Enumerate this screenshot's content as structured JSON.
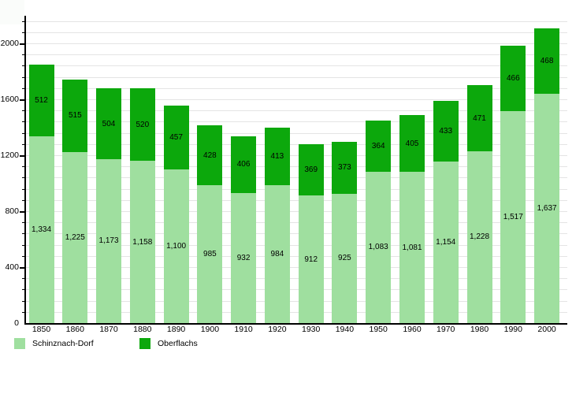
{
  "chart_data": {
    "type": "bar",
    "stacked": true,
    "title": "",
    "xlabel": "",
    "ylabel": "",
    "categories": [
      "1850",
      "1860",
      "1870",
      "1880",
      "1890",
      "1900",
      "1910",
      "1920",
      "1930",
      "1940",
      "1950",
      "1960",
      "1970",
      "1980",
      "1990",
      "2000"
    ],
    "series": [
      {
        "name": "Schinznach-Dorf",
        "color": "#9FDF9F",
        "values": [
          1334,
          1225,
          1173,
          1158,
          1100,
          985,
          932,
          984,
          912,
          925,
          1083,
          1081,
          1154,
          1228,
          1517,
          1637
        ]
      },
      {
        "name": "Oberflachs",
        "color": "#0CA80C",
        "values": [
          512,
          515,
          504,
          520,
          457,
          428,
          406,
          413,
          369,
          373,
          364,
          405,
          433,
          471,
          466,
          468
        ]
      }
    ],
    "totals": [
      1846,
      1740,
      1677,
      1678,
      1557,
      1413,
      1338,
      1397,
      1281,
      1298,
      1447,
      1486,
      1587,
      1699,
      1983,
      2105
    ],
    "ylim": [
      0,
      2265
    ],
    "y_major_ticks": [
      0,
      400,
      800,
      1200,
      1600,
      2000
    ],
    "y_minor_step": 80,
    "grid": true,
    "gridline_color": "#e4e4e4",
    "label_color": "#000000",
    "legend_position": "bottom-left",
    "number_format": "thousands-comma"
  }
}
